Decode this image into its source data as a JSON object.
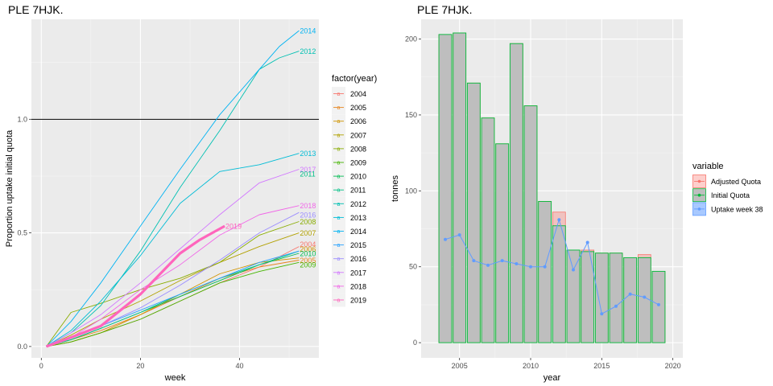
{
  "chart_data": [
    {
      "type": "line",
      "title": "PLE 7HJK.",
      "xlabel": "week",
      "ylabel": "Proportion uptake initial quota",
      "xlim": [
        -2,
        56
      ],
      "ylim": [
        -0.05,
        1.44
      ],
      "xticks": [
        0,
        20,
        40
      ],
      "yticks": [
        0.0,
        0.5,
        1.0
      ],
      "ytick_labels": [
        "0.0",
        "0.5",
        "1.0"
      ],
      "xtick_labels": [
        "0",
        "20",
        "40"
      ],
      "hline": 1.0,
      "legend_title": "factor(year)",
      "series": [
        {
          "name": "2004",
          "color": "#F8766D",
          "points": [
            [
              1,
              0
            ],
            [
              6,
              0.02
            ],
            [
              12,
              0.06
            ],
            [
              20,
              0.12
            ],
            [
              28,
              0.2
            ],
            [
              36,
              0.28
            ],
            [
              44,
              0.35
            ],
            [
              52,
              0.44
            ]
          ]
        },
        {
          "name": "2005",
          "color": "#E7851E",
          "points": [
            [
              1,
              0
            ],
            [
              6,
              0.03
            ],
            [
              12,
              0.07
            ],
            [
              20,
              0.14
            ],
            [
              28,
              0.22
            ],
            [
              36,
              0.3
            ],
            [
              44,
              0.35
            ],
            [
              52,
              0.38
            ]
          ]
        },
        {
          "name": "2006",
          "color": "#D09400",
          "points": [
            [
              1,
              0
            ],
            [
              6,
              0.02
            ],
            [
              12,
              0.06
            ],
            [
              20,
              0.14
            ],
            [
              28,
              0.23
            ],
            [
              36,
              0.32
            ],
            [
              44,
              0.37
            ],
            [
              52,
              0.39
            ]
          ]
        },
        {
          "name": "2007",
          "color": "#B2A100",
          "points": [
            [
              1,
              0
            ],
            [
              6,
              0.05
            ],
            [
              12,
              0.12
            ],
            [
              20,
              0.2
            ],
            [
              28,
              0.29
            ],
            [
              36,
              0.37
            ],
            [
              44,
              0.44
            ],
            [
              52,
              0.5
            ]
          ]
        },
        {
          "name": "2008",
          "color": "#89AC00",
          "points": [
            [
              1,
              0
            ],
            [
              6,
              0.15
            ],
            [
              12,
              0.19
            ],
            [
              20,
              0.25
            ],
            [
              28,
              0.3
            ],
            [
              36,
              0.37
            ],
            [
              44,
              0.49
            ],
            [
              52,
              0.55
            ]
          ]
        },
        {
          "name": "2009",
          "color": "#45B500",
          "points": [
            [
              1,
              0
            ],
            [
              6,
              0.02
            ],
            [
              12,
              0.06
            ],
            [
              20,
              0.12
            ],
            [
              28,
              0.2
            ],
            [
              36,
              0.28
            ],
            [
              44,
              0.33
            ],
            [
              52,
              0.37
            ]
          ]
        },
        {
          "name": "2010",
          "color": "#00BC51",
          "points": [
            [
              1,
              0
            ],
            [
              6,
              0.03
            ],
            [
              12,
              0.08
            ],
            [
              20,
              0.15
            ],
            [
              28,
              0.22
            ],
            [
              36,
              0.29
            ],
            [
              44,
              0.36
            ],
            [
              52,
              0.41
            ]
          ]
        },
        {
          "name": "2011",
          "color": "#00C087",
          "points": [
            [
              1,
              0
            ],
            [
              6,
              0.03
            ],
            [
              12,
              0.08
            ],
            [
              20,
              0.15
            ],
            [
              28,
              0.23
            ],
            [
              36,
              0.3
            ],
            [
              44,
              0.36
            ],
            [
              52,
              0.42
            ]
          ]
        },
        {
          "name": "2012",
          "color": "#00C0B2",
          "points": [
            [
              1,
              0
            ],
            [
              6,
              0.06
            ],
            [
              12,
              0.18
            ],
            [
              20,
              0.42
            ],
            [
              28,
              0.7
            ],
            [
              36,
              0.95
            ],
            [
              44,
              1.22
            ],
            [
              48,
              1.27
            ],
            [
              52,
              1.3
            ]
          ]
        },
        {
          "name": "2013",
          "color": "#00BCD6",
          "points": [
            [
              1,
              0
            ],
            [
              6,
              0.07
            ],
            [
              12,
              0.2
            ],
            [
              20,
              0.4
            ],
            [
              28,
              0.63
            ],
            [
              36,
              0.77
            ],
            [
              44,
              0.8
            ],
            [
              52,
              0.85
            ]
          ]
        },
        {
          "name": "2014",
          "color": "#00B3F2",
          "points": [
            [
              1,
              0
            ],
            [
              6,
              0.11
            ],
            [
              12,
              0.28
            ],
            [
              20,
              0.53
            ],
            [
              28,
              0.78
            ],
            [
              36,
              1.02
            ],
            [
              42,
              1.17
            ],
            [
              48,
              1.32
            ],
            [
              52,
              1.39
            ]
          ]
        },
        {
          "name": "2015",
          "color": "#29A3FF",
          "points": [
            [
              1,
              0
            ],
            [
              6,
              0.04
            ],
            [
              12,
              0.09
            ],
            [
              20,
              0.16
            ],
            [
              28,
              0.23
            ],
            [
              36,
              0.3
            ],
            [
              44,
              0.37
            ],
            [
              52,
              0.42
            ]
          ]
        },
        {
          "name": "2016",
          "color": "#9C8DFF",
          "points": [
            [
              1,
              0
            ],
            [
              6,
              0.04
            ],
            [
              12,
              0.09
            ],
            [
              20,
              0.17
            ],
            [
              28,
              0.27
            ],
            [
              36,
              0.38
            ],
            [
              44,
              0.5
            ],
            [
              52,
              0.59
            ]
          ]
        },
        {
          "name": "2017",
          "color": "#D277FF",
          "points": [
            [
              1,
              0
            ],
            [
              6,
              0.06
            ],
            [
              12,
              0.14
            ],
            [
              20,
              0.28
            ],
            [
              28,
              0.43
            ],
            [
              36,
              0.58
            ],
            [
              44,
              0.72
            ],
            [
              52,
              0.78
            ]
          ]
        },
        {
          "name": "2018",
          "color": "#F166E8",
          "points": [
            [
              1,
              0
            ],
            [
              6,
              0.04
            ],
            [
              12,
              0.12
            ],
            [
              20,
              0.25
            ],
            [
              28,
              0.36
            ],
            [
              36,
              0.49
            ],
            [
              44,
              0.58
            ],
            [
              52,
              0.62
            ]
          ]
        },
        {
          "name": "2019",
          "color": "#FF65BC",
          "points": [
            [
              1,
              0
            ],
            [
              6,
              0.04
            ],
            [
              12,
              0.09
            ],
            [
              20,
              0.23
            ],
            [
              28,
              0.41
            ],
            [
              32,
              0.47
            ],
            [
              37,
              0.53
            ]
          ]
        }
      ],
      "end_labels": [
        {
          "text": "2014",
          "x": 52,
          "y": 1.39,
          "color": "#00B3F2"
        },
        {
          "text": "2012",
          "x": 52,
          "y": 1.3,
          "color": "#00C0B2"
        },
        {
          "text": "2013",
          "x": 52,
          "y": 0.85,
          "color": "#00BCD6"
        },
        {
          "text": "2017",
          "x": 52,
          "y": 0.78,
          "color": "#D277FF"
        },
        {
          "text": "2011",
          "x": 52,
          "y": 0.76,
          "color": "#00C087"
        },
        {
          "text": "2018",
          "x": 52,
          "y": 0.62,
          "color": "#F166E8"
        },
        {
          "text": "2016",
          "x": 52,
          "y": 0.58,
          "color": "#9C8DFF"
        },
        {
          "text": "2008",
          "x": 52,
          "y": 0.55,
          "color": "#89AC00"
        },
        {
          "text": "2007",
          "x": 52,
          "y": 0.5,
          "color": "#B2A100"
        },
        {
          "text": "2004",
          "x": 52,
          "y": 0.45,
          "color": "#F8766D"
        },
        {
          "text": "2006",
          "x": 52,
          "y": 0.43,
          "color": "#D09400"
        },
        {
          "text": "2010",
          "x": 52,
          "y": 0.41,
          "color": "#00BC51"
        },
        {
          "text": "2005",
          "x": 52,
          "y": 0.38,
          "color": "#E7851E"
        },
        {
          "text": "2009",
          "x": 52,
          "y": 0.36,
          "color": "#45B500"
        },
        {
          "text": "2019",
          "x": 37,
          "y": 0.53,
          "color": "#FF65BC"
        }
      ]
    },
    {
      "type": "bar",
      "title": "PLE 7HJK.",
      "xlabel": "year",
      "ylabel": "tonnes",
      "xlim": [
        2002.3,
        2020.7
      ],
      "ylim": [
        -10,
        213
      ],
      "xticks": [
        2005,
        2010,
        2015,
        2020
      ],
      "xtick_labels": [
        "2005",
        "2010",
        "2015",
        "2020"
      ],
      "yticks": [
        0,
        50,
        100,
        150,
        200
      ],
      "ytick_labels": [
        "0",
        "50",
        "100",
        "150",
        "200"
      ],
      "categories": [
        2004,
        2005,
        2006,
        2007,
        2008,
        2009,
        2010,
        2011,
        2012,
        2013,
        2014,
        2015,
        2016,
        2017,
        2018,
        2019
      ],
      "legend_title": "variable",
      "series": [
        {
          "name": "Adjusted Quota",
          "color": "#F8766D",
          "values": [
            203,
            204,
            171,
            148,
            131,
            197,
            156,
            93,
            86,
            61,
            61,
            59,
            59,
            56,
            58,
            47
          ]
        },
        {
          "name": "Initial Quota",
          "color": "#00BA38",
          "values": [
            203,
            204,
            171,
            148,
            131,
            197,
            156,
            93,
            77,
            61,
            60,
            59,
            59,
            56,
            56,
            47
          ]
        },
        {
          "name": "Uptake week 38",
          "color": "#619CFF",
          "values": [
            68,
            71,
            54,
            51,
            54,
            52,
            50,
            50,
            81,
            48,
            66,
            19,
            24,
            32,
            30,
            25
          ]
        }
      ]
    }
  ]
}
